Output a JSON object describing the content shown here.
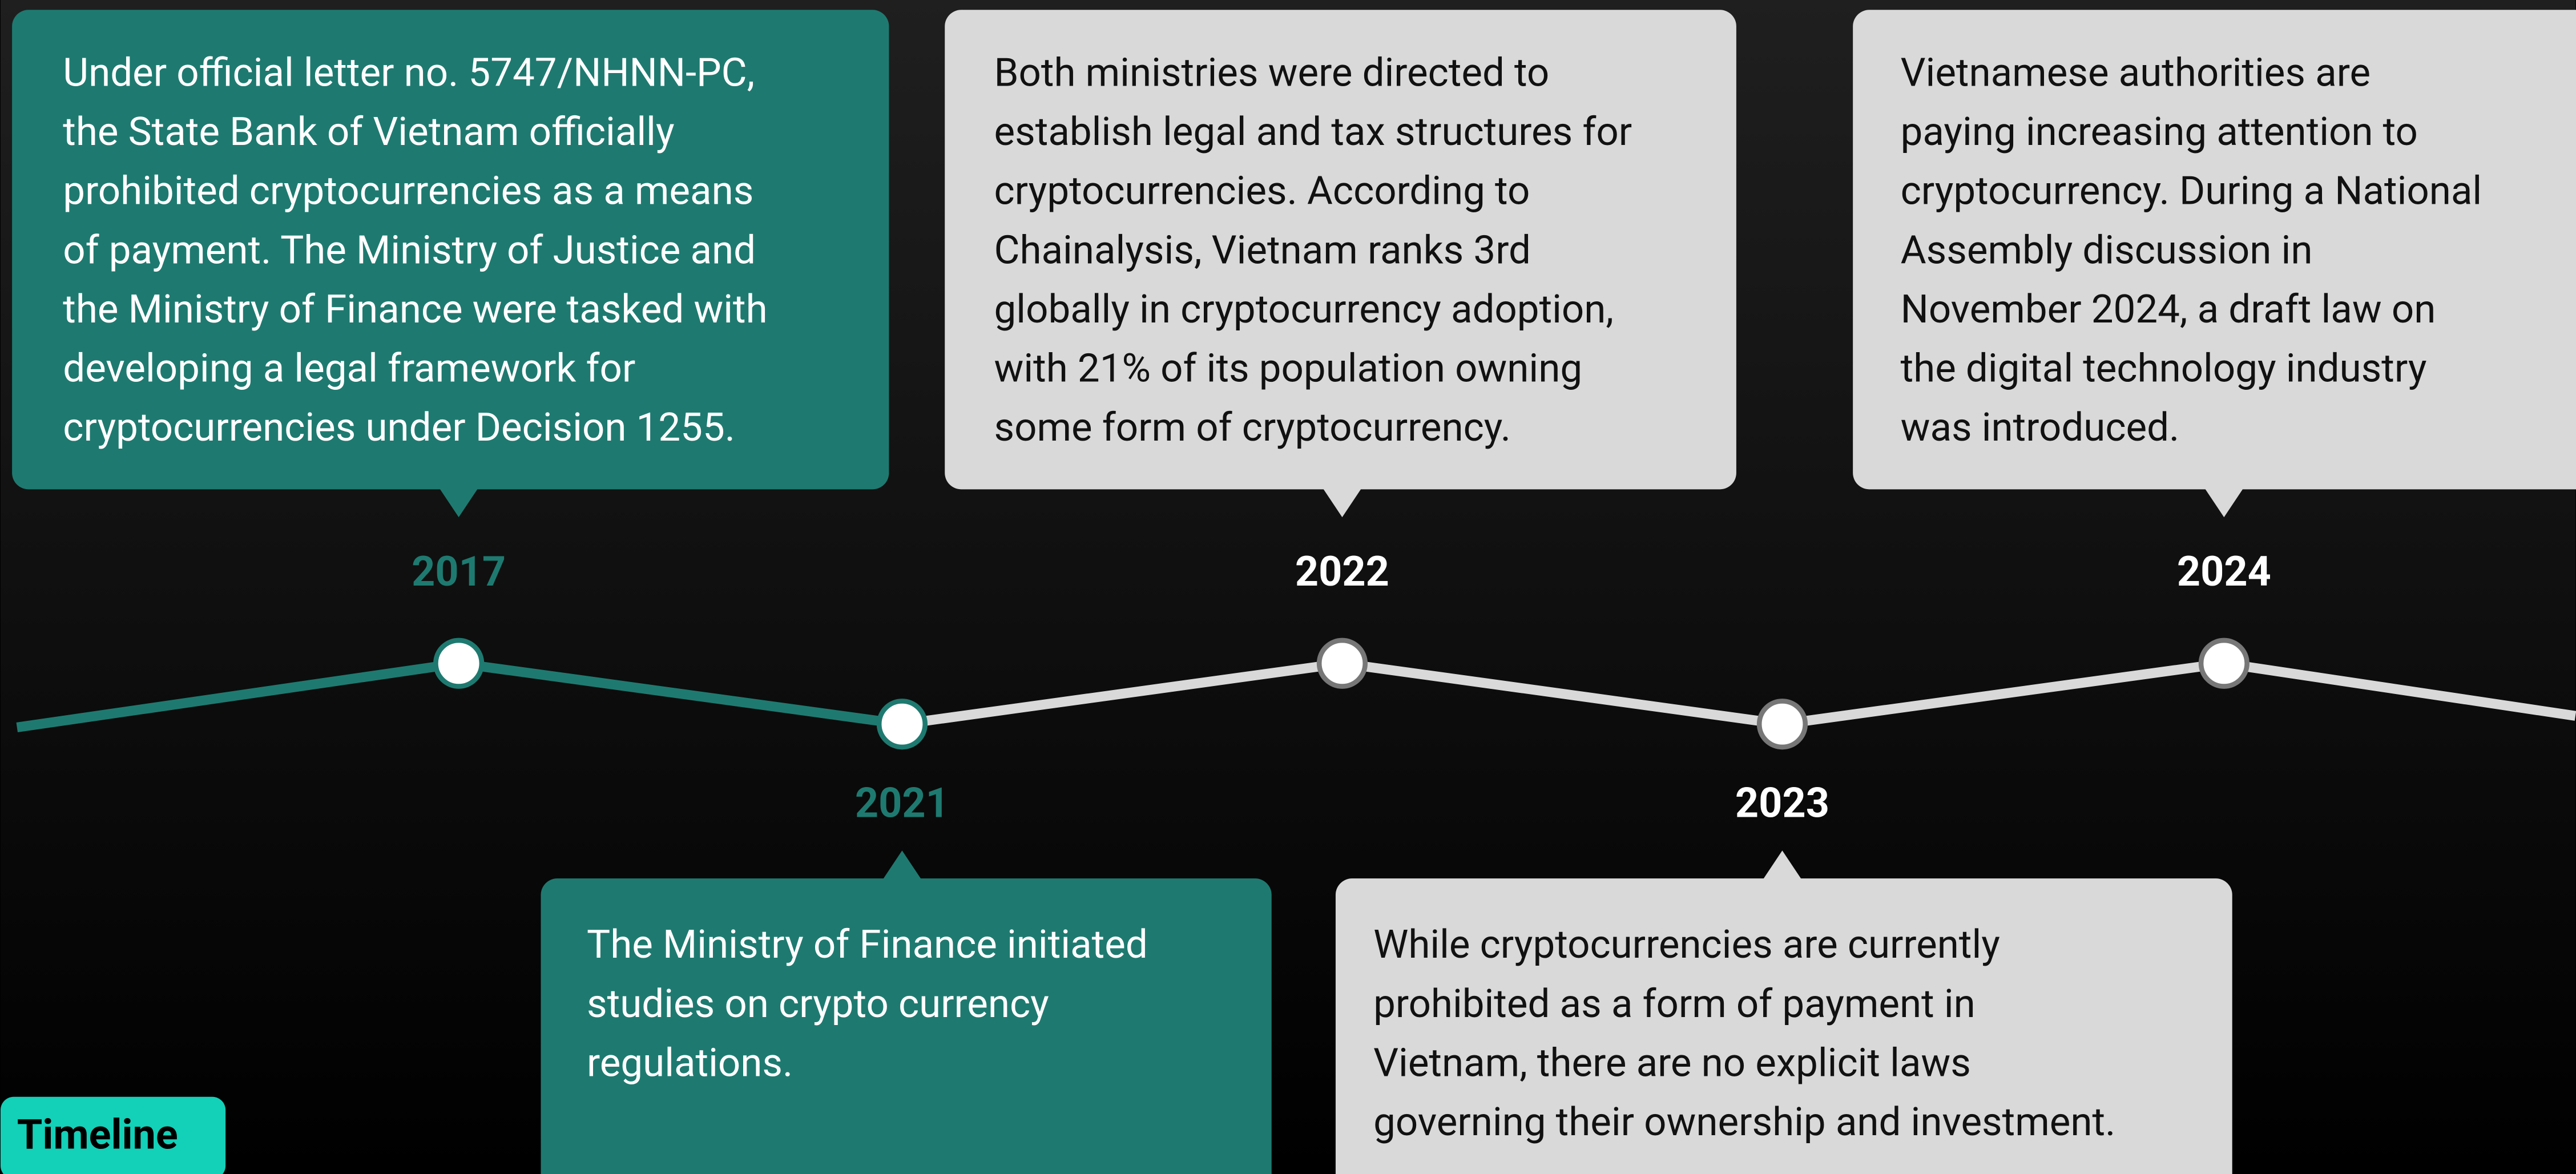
{
  "label": "Timeline",
  "events": [
    {
      "year": "2017",
      "text": [
        "Under official letter no. 5747/NHNN-PC,",
        "the State Bank of Vietnam officially",
        "prohibited cryptocurrencies as a means",
        "of payment. The Ministry of Justice and",
        "the Ministry of Finance were tasked with",
        "developing a legal framework for",
        "cryptocurrencies under Decision 1255."
      ]
    },
    {
      "year": "2021",
      "text": [
        "The Ministry of Finance initiated",
        "studies on crypto currency",
        "regulations."
      ]
    },
    {
      "year": "2022",
      "text": [
        "Both ministries were directed to",
        "establish legal and tax structures for",
        "cryptocurrencies. According to",
        "Chainalysis, Vietnam ranks 3rd",
        "globally in cryptocurrency adoption,",
        "with 21% of its population owning",
        "some form of cryptocurrency."
      ]
    },
    {
      "year": "2023",
      "text": [
        "While cryptocurrencies are currently",
        "prohibited as a form of payment in",
        "Vietnam, there are no explicit laws",
        "governing their ownership and investment."
      ]
    },
    {
      "year": "2024",
      "text": [
        "Vietnamese authorities are",
        "paying increasing attention to",
        "cryptocurrency. During a National",
        "Assembly discussion in",
        "November 2024, a draft law on",
        "the digital technology industry",
        "was introduced."
      ]
    }
  ]
}
